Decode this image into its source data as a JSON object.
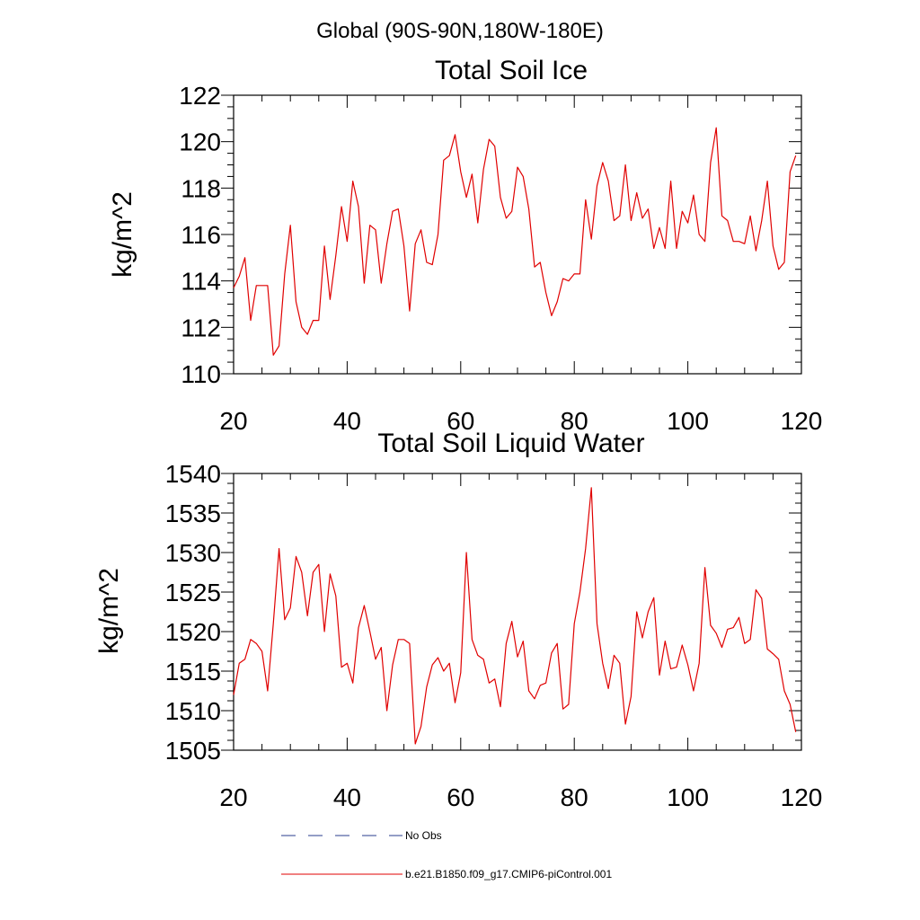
{
  "title": "Global (90S-90N,180W-180E)",
  "legend": [
    {
      "label": "No Obs",
      "color": "#283c8c",
      "dash": true
    },
    {
      "label": "b.e21.B1850.f09_g17.CMIP6-piControl.001",
      "color": "#e00000",
      "dash": false
    }
  ],
  "chart_data": [
    {
      "type": "line",
      "title": "Total Soil Ice",
      "xlabel": "",
      "ylabel": "kg/m^2",
      "xlim": [
        20,
        120
      ],
      "ylim": [
        110,
        122
      ],
      "xticks": [
        20,
        40,
        60,
        80,
        100,
        120
      ],
      "yticks": [
        110,
        112,
        114,
        116,
        118,
        120,
        122
      ],
      "grid": false,
      "series": [
        {
          "color": "#e00000",
          "x": [
            20,
            21,
            22,
            23,
            24,
            25,
            26,
            27,
            28,
            29,
            30,
            31,
            32,
            33,
            34,
            35,
            36,
            37,
            38,
            39,
            40,
            41,
            42,
            43,
            44,
            45,
            46,
            47,
            48,
            49,
            50,
            51,
            52,
            53,
            54,
            55,
            56,
            57,
            58,
            59,
            60,
            61,
            62,
            63,
            64,
            65,
            66,
            67,
            68,
            69,
            70,
            71,
            72,
            73,
            74,
            75,
            76,
            77,
            78,
            79,
            80,
            81,
            82,
            83,
            84,
            85,
            86,
            87,
            88,
            89,
            90,
            91,
            92,
            93,
            94,
            95,
            96,
            97,
            98,
            99,
            100,
            101,
            102,
            103,
            104,
            105,
            106,
            107,
            108,
            109,
            110,
            111,
            112,
            113,
            114,
            115,
            116,
            117,
            118,
            119
          ],
          "values": [
            113.7,
            114.2,
            115.0,
            112.3,
            113.8,
            113.8,
            113.8,
            110.8,
            111.2,
            114.3,
            116.4,
            113.1,
            112.0,
            111.7,
            112.3,
            112.3,
            115.5,
            113.2,
            115.1,
            117.2,
            115.7,
            118.3,
            117.2,
            113.9,
            116.4,
            116.2,
            113.9,
            115.6,
            117.0,
            117.1,
            115.5,
            112.7,
            115.6,
            116.2,
            114.8,
            114.7,
            116.0,
            119.2,
            119.4,
            120.3,
            118.7,
            117.6,
            118.6,
            116.5,
            118.8,
            120.1,
            119.8,
            117.6,
            116.7,
            117.0,
            118.9,
            118.5,
            117.1,
            114.6,
            114.8,
            113.5,
            112.5,
            113.1,
            114.1,
            114.0,
            114.3,
            114.3,
            117.5,
            115.8,
            118.1,
            119.1,
            118.3,
            116.6,
            116.8,
            119.0,
            116.6,
            117.8,
            116.7,
            117.1,
            115.4,
            116.3,
            115.4,
            118.3,
            115.4,
            117.0,
            116.5,
            117.7,
            116.0,
            115.7,
            119.1,
            120.6,
            116.8,
            116.6,
            115.7,
            115.7,
            115.6,
            116.8,
            115.3,
            116.6,
            118.3,
            115.5,
            114.5,
            114.8,
            118.7,
            119.4
          ]
        }
      ]
    },
    {
      "type": "line",
      "title": "Total Soil Liquid Water",
      "xlabel": "",
      "ylabel": "kg/m^2",
      "xlim": [
        20,
        120
      ],
      "ylim": [
        1505,
        1540
      ],
      "xticks": [
        20,
        40,
        60,
        80,
        100,
        120
      ],
      "yticks": [
        1505,
        1510,
        1515,
        1520,
        1525,
        1530,
        1535,
        1540
      ],
      "grid": false,
      "series": [
        {
          "color": "#e00000",
          "x": [
            20,
            21,
            22,
            23,
            24,
            25,
            26,
            27,
            28,
            29,
            30,
            31,
            32,
            33,
            34,
            35,
            36,
            37,
            38,
            39,
            40,
            41,
            42,
            43,
            44,
            45,
            46,
            47,
            48,
            49,
            50,
            51,
            52,
            53,
            54,
            55,
            56,
            57,
            58,
            59,
            60,
            61,
            62,
            63,
            64,
            65,
            66,
            67,
            68,
            69,
            70,
            71,
            72,
            73,
            74,
            75,
            76,
            77,
            78,
            79,
            80,
            81,
            82,
            83,
            84,
            85,
            86,
            87,
            88,
            89,
            90,
            91,
            92,
            93,
            94,
            95,
            96,
            97,
            98,
            99,
            100,
            101,
            102,
            103,
            104,
            105,
            106,
            107,
            108,
            109,
            110,
            111,
            112,
            113,
            114,
            115,
            116,
            117,
            118,
            119
          ],
          "values": [
            1512,
            1516,
            1516.5,
            1519,
            1518.5,
            1517.5,
            1512.5,
            1521,
            1530.5,
            1521.5,
            1523,
            1529.5,
            1527.5,
            1522,
            1527.5,
            1528.5,
            1520,
            1527.3,
            1524.5,
            1515.5,
            1516,
            1513.5,
            1520.5,
            1523.3,
            1520,
            1516.5,
            1518,
            1510,
            1515.8,
            1519,
            1519,
            1518.5,
            1505.8,
            1508,
            1513,
            1515.8,
            1516.7,
            1515,
            1516,
            1511,
            1514.8,
            1530,
            1519,
            1517,
            1516.5,
            1513.5,
            1514,
            1510.5,
            1518.5,
            1521.3,
            1516.8,
            1518.8,
            1512.5,
            1511.5,
            1513.2,
            1513.5,
            1517.3,
            1518.5,
            1510.2,
            1510.8,
            1521,
            1525,
            1530.5,
            1538.2,
            1521,
            1516,
            1512.8,
            1517,
            1516,
            1508.3,
            1511.8,
            1522.5,
            1519.2,
            1522.5,
            1524.3,
            1514.5,
            1518.8,
            1515.3,
            1515.5,
            1518.3,
            1515.8,
            1512.5,
            1516,
            1528.1,
            1520.8,
            1519.8,
            1518,
            1520.3,
            1520.5,
            1521.8,
            1518.5,
            1519,
            1525.3,
            1524.2,
            1517.8,
            1517.2,
            1516.5,
            1512.5,
            1510.8,
            1507.3
          ]
        }
      ]
    }
  ]
}
